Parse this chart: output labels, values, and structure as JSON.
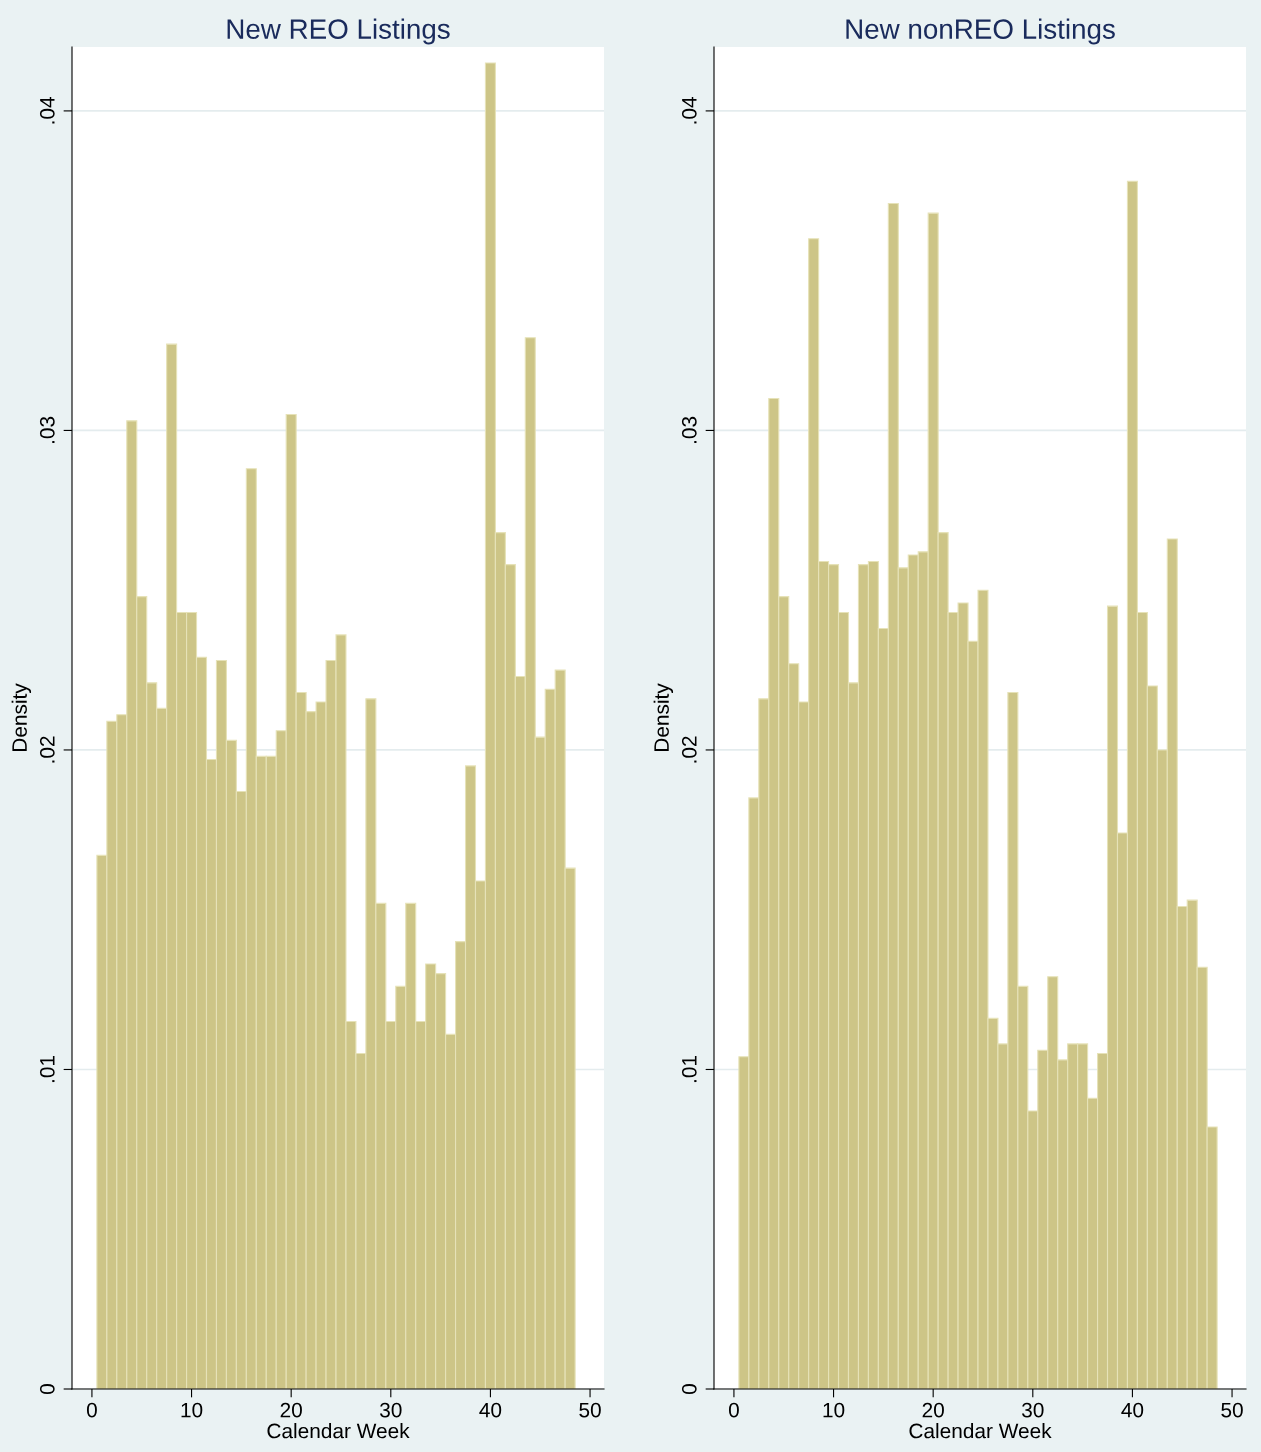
{
  "chart_data": [
    {
      "type": "histogram",
      "title": "New REO Listings",
      "xlabel": "Calendar Week",
      "ylabel": "Density",
      "color": "#cdc587",
      "grid": "y",
      "bins": [
        0.5,
        1.5,
        2.5,
        3.5,
        4.5,
        5.5,
        6.5,
        7.5,
        8.5,
        9.5,
        10.5,
        11.5,
        12.5,
        13.5,
        14.5,
        15.5,
        16.5,
        17.5,
        18.5,
        19.5,
        20.5,
        21.5,
        22.5,
        23.5,
        24.5,
        25.5,
        26.5,
        27.5,
        28.5,
        29.5,
        30.5,
        31.5,
        32.5,
        33.5,
        34.5,
        35.5,
        36.5,
        37.5,
        38.5,
        39.5,
        40.5,
        41.5,
        42.5,
        43.5,
        44.5,
        45.5,
        46.5,
        47.5,
        48.5
      ],
      "values": [
        0.0167,
        0.0209,
        0.0211,
        0.0303,
        0.0248,
        0.0221,
        0.0213,
        0.0327,
        0.0243,
        0.0243,
        0.0229,
        0.0197,
        0.0228,
        0.0203,
        0.0187,
        0.0288,
        0.0198,
        0.0198,
        0.0206,
        0.0305,
        0.0218,
        0.0212,
        0.0215,
        0.0228,
        0.0236,
        0.0115,
        0.0105,
        0.0216,
        0.0152,
        0.0115,
        0.0126,
        0.0152,
        0.0115,
        0.0133,
        0.013,
        0.0111,
        0.014,
        0.0195,
        0.0159,
        0.0415,
        0.0268,
        0.0258,
        0.0223,
        0.0329,
        0.0204,
        0.0219,
        0.0225,
        0.0163
      ],
      "xlim": [
        -2,
        51.4
      ],
      "xticks": [
        0,
        10,
        20,
        30,
        40,
        50
      ],
      "ylim": [
        0,
        0.042
      ],
      "yticks": [
        {
          "value": 0,
          "label": "0"
        },
        {
          "value": 0.01,
          "label": ".01"
        },
        {
          "value": 0.02,
          "label": ".02"
        },
        {
          "value": 0.03,
          "label": ".03"
        },
        {
          "value": 0.04,
          "label": ".04"
        }
      ]
    },
    {
      "type": "histogram",
      "title": "New nonREO Listings",
      "xlabel": "Calendar Week",
      "ylabel": "Density",
      "color": "#cdc587",
      "grid": "y",
      "bins": [
        0.5,
        1.5,
        2.5,
        3.5,
        4.5,
        5.5,
        6.5,
        7.5,
        8.5,
        9.5,
        10.5,
        11.5,
        12.5,
        13.5,
        14.5,
        15.5,
        16.5,
        17.5,
        18.5,
        19.5,
        20.5,
        21.5,
        22.5,
        23.5,
        24.5,
        25.5,
        26.5,
        27.5,
        28.5,
        29.5,
        30.5,
        31.5,
        32.5,
        33.5,
        34.5,
        35.5,
        36.5,
        37.5,
        38.5,
        39.5,
        40.5,
        41.5,
        42.5,
        43.5,
        44.5,
        45.5,
        46.5,
        47.5,
        48.5
      ],
      "values": [
        0.0104,
        0.0185,
        0.0216,
        0.031,
        0.0248,
        0.0227,
        0.0215,
        0.036,
        0.0259,
        0.0258,
        0.0243,
        0.0221,
        0.0258,
        0.0259,
        0.0238,
        0.0371,
        0.0257,
        0.0261,
        0.0262,
        0.0368,
        0.0268,
        0.0243,
        0.0246,
        0.0234,
        0.025,
        0.0116,
        0.0108,
        0.0218,
        0.0126,
        0.0087,
        0.0106,
        0.0129,
        0.0103,
        0.0108,
        0.0108,
        0.0091,
        0.0105,
        0.0245,
        0.0174,
        0.0378,
        0.0243,
        0.022,
        0.02,
        0.0266,
        0.0151,
        0.0153,
        0.0132,
        0.0082
      ],
      "xlim": [
        -2,
        51.4
      ],
      "xticks": [
        0,
        10,
        20,
        30,
        40,
        50
      ],
      "ylim": [
        0,
        0.042
      ],
      "yticks": [
        {
          "value": 0,
          "label": "0"
        },
        {
          "value": 0.01,
          "label": ".01"
        },
        {
          "value": 0.02,
          "label": ".02"
        },
        {
          "value": 0.03,
          "label": ".03"
        },
        {
          "value": 0.04,
          "label": ".04"
        }
      ]
    }
  ]
}
